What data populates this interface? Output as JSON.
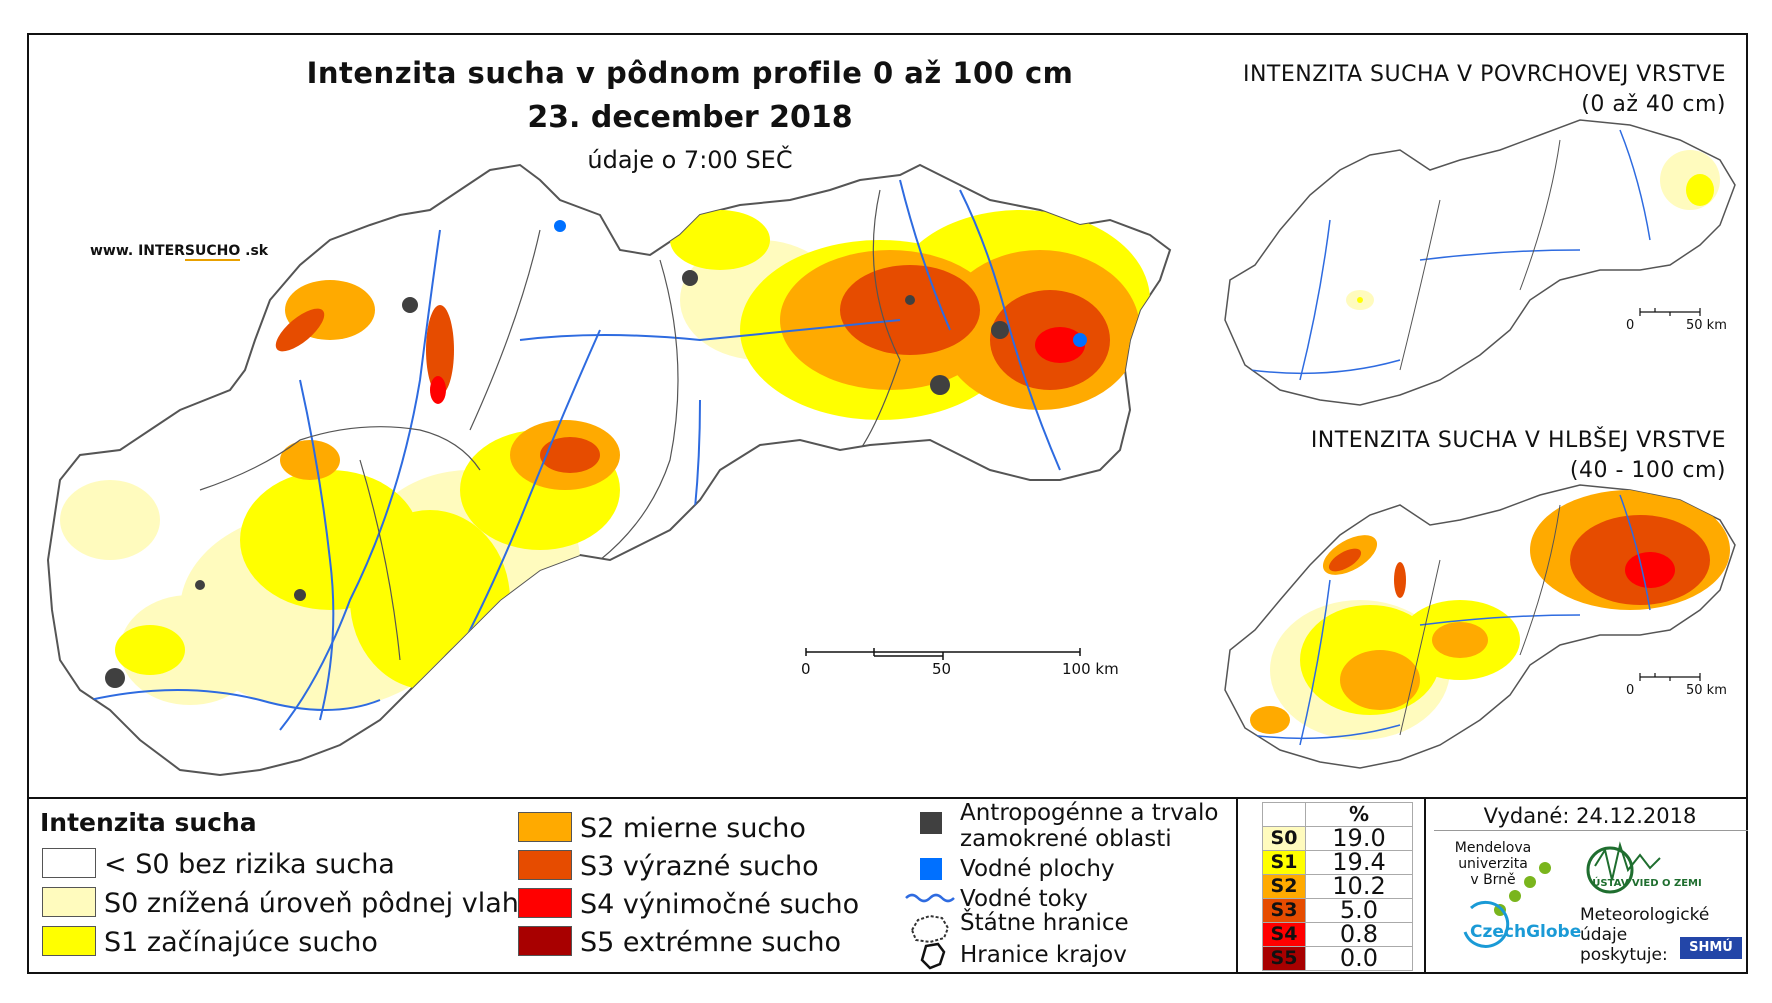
{
  "title": "Intenzita sucha v pôdnom profile 0 až 100 cm",
  "date": "23. december 2018",
  "time_note": "údaje o 7:00 SEČ",
  "website": {
    "prefix": "www. INTER",
    "brand": "SUCHO",
    "suffix": " .sk"
  },
  "surface_map": {
    "title_line1": "INTENZITA SUCHA V POVRCHOVEJ VRSTVE",
    "title_line2": "(0 až 40 cm)",
    "scale_0": "0",
    "scale_50": "50 km"
  },
  "deep_map": {
    "title_line1": "INTENZITA SUCHA V HLBŠEJ VRSTVE",
    "title_line2": "(40 - 100 cm)",
    "scale_0": "0",
    "scale_50": "50 km"
  },
  "main_scale": {
    "label_0": "0",
    "label_50": "50",
    "label_100": "100 km"
  },
  "legend": {
    "title": "Intenzita sucha",
    "classes": [
      {
        "label": "< S0 bez rizika sucha",
        "color": "#ffffff"
      },
      {
        "label": "S0 znížená úroveň pôdnej vlahy",
        "color": "#fffbbe"
      },
      {
        "label": "S1 začínajúce sucho",
        "color": "#ffff00"
      },
      {
        "label": "S2 mierne sucho",
        "color": "#ffaa00"
      },
      {
        "label": "S3 výrazné sucho",
        "color": "#e64c00"
      },
      {
        "label": "S4 výnimočné sucho",
        "color": "#ff0000"
      },
      {
        "label": "S5 extrémne sucho",
        "color": "#a80000"
      }
    ],
    "symbols": [
      {
        "label_line1": "Antropogénne a trvalo",
        "label_line2": "zamokrené oblasti",
        "color": "#404040"
      },
      {
        "label": "Vodné plochy",
        "color": "#0070ff"
      },
      {
        "label": "Vodné toky",
        "color": "#2e6be0"
      },
      {
        "label": "Štátne hranice"
      },
      {
        "label": "Hranice krajov"
      }
    ]
  },
  "percent_table": {
    "header": "%",
    "rows": [
      {
        "code": "S0",
        "value": "19.0",
        "color": "#fffbbe"
      },
      {
        "code": "S1",
        "value": "19.4",
        "color": "#ffff00"
      },
      {
        "code": "S2",
        "value": "10.2",
        "color": "#ffaa00"
      },
      {
        "code": "S3",
        "value": "5.0",
        "color": "#e64c00"
      },
      {
        "code": "S4",
        "value": "0.8",
        "color": "#ff0000"
      },
      {
        "code": "S5",
        "value": "0.0",
        "color": "#a80000"
      }
    ]
  },
  "issued": "Vydané: 24.12.2018",
  "logos": {
    "mendel": "Mendelova\nuniverzita\nv Brně",
    "czechglobe": "CzechGlobe",
    "ustav": "ÚSTAV VIED O ZEMI",
    "meteo": "Meteorologické\núdaje\nposkytuje:",
    "shmu": "SHMÚ"
  }
}
